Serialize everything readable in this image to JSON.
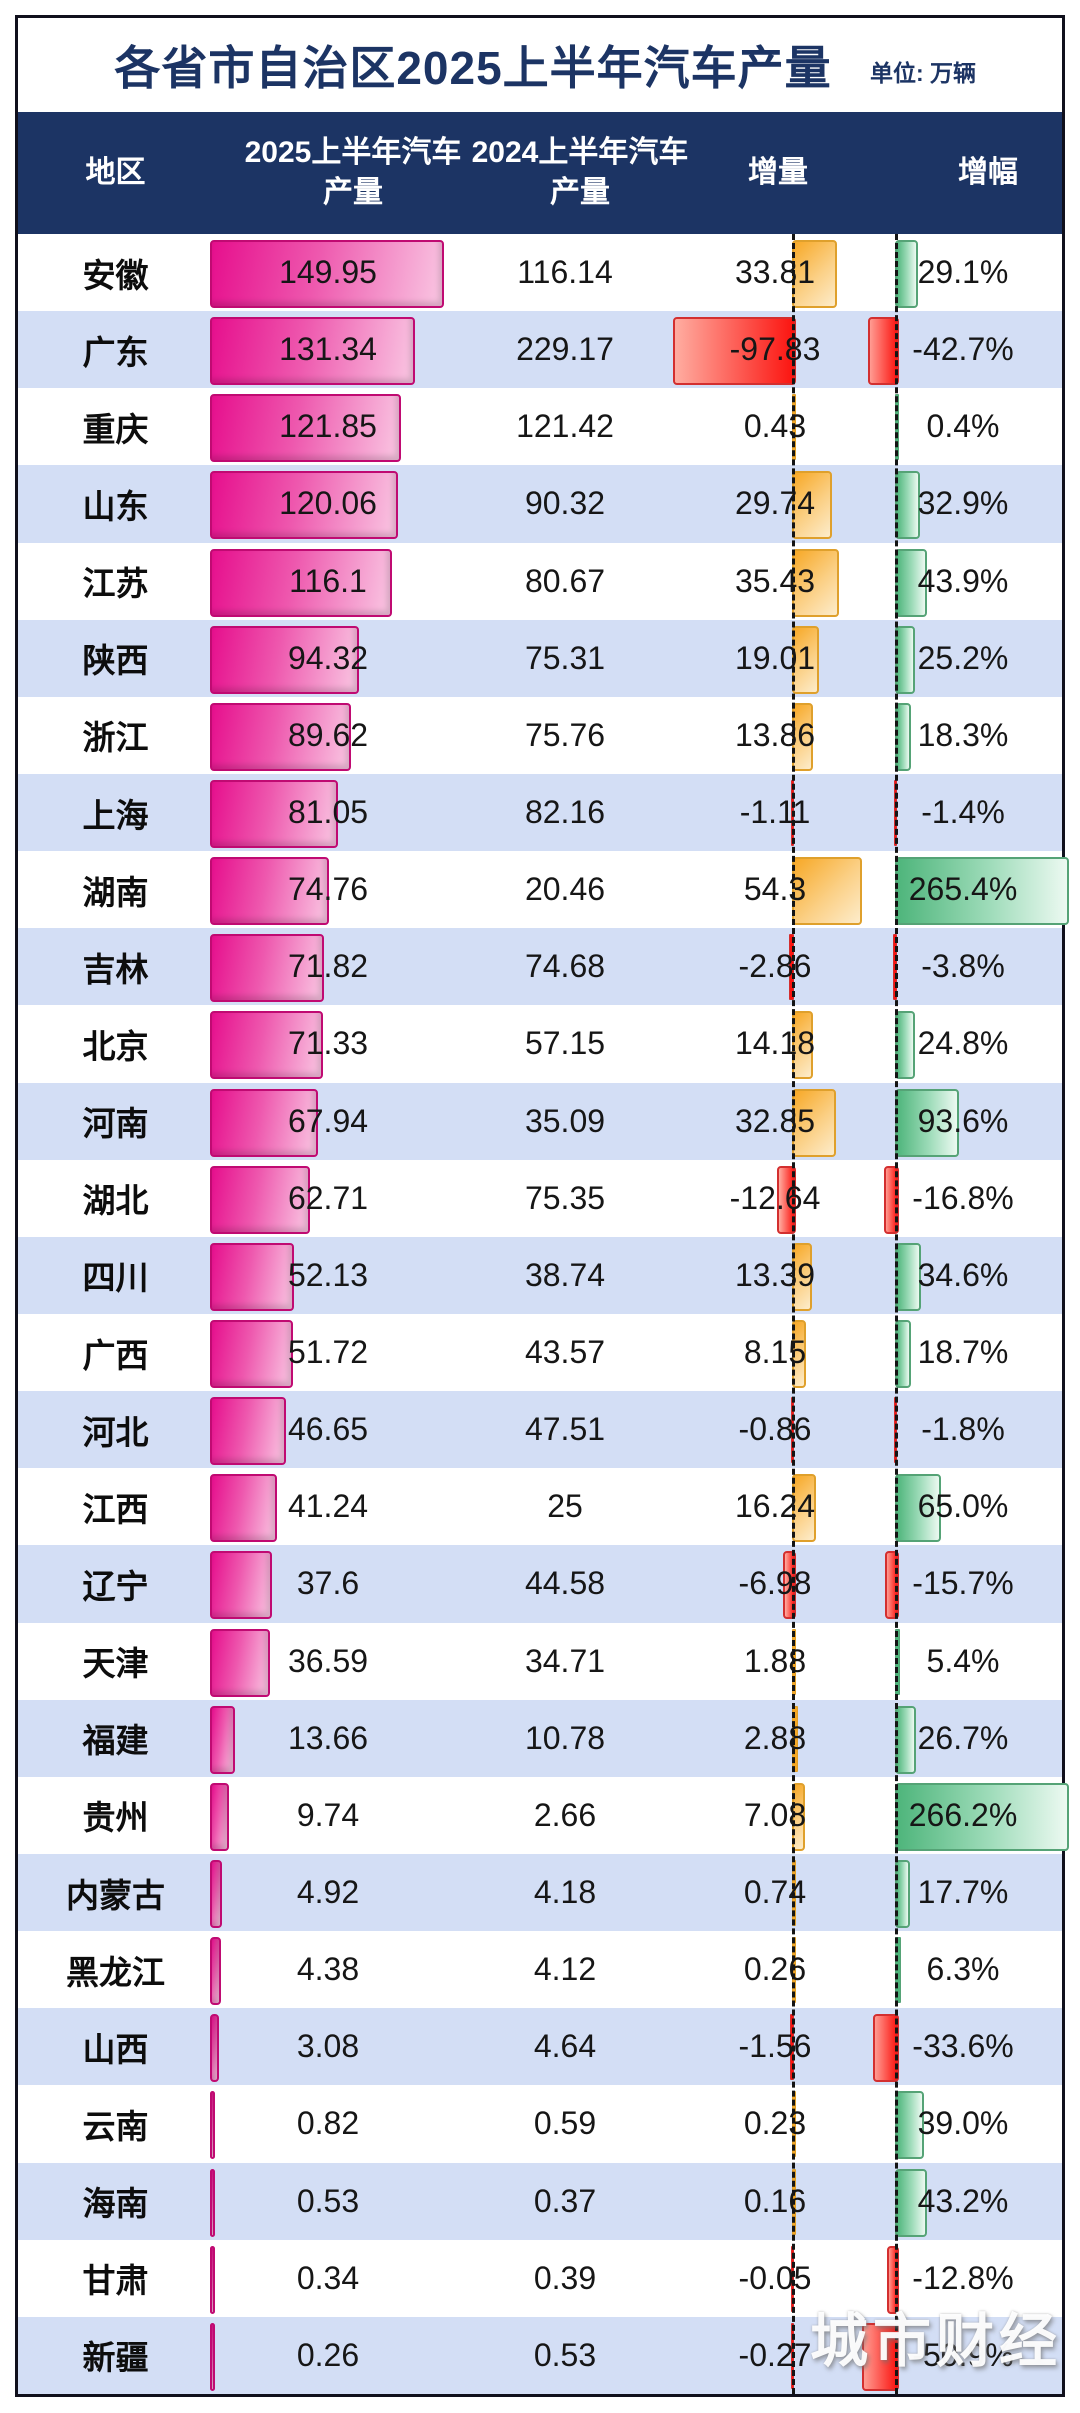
{
  "page": {
    "title": "各省市自治区2025上半年汽车产量",
    "unit_label": "单位: 万辆",
    "watermark": "城市财经"
  },
  "table_headers": {
    "region": "地区",
    "y2025": "2025上半年汽车\n产量",
    "y2024": "2024上半年汽车\n产量",
    "delta": "增量",
    "growth": "增幅"
  },
  "colors": {
    "navy": "#1c3464",
    "row_alt": "#d3def5",
    "bar_2025_magenta": "#e60f8d",
    "bar_delta_positive": "#f7a826",
    "bar_negative_red": "#fb1410",
    "bar_growth_positive": "#4eb57b"
  },
  "chart_data": {
    "type": "bar",
    "title": "各省市自治区2025上半年汽车产量",
    "unit": "万辆",
    "legend_position": "none",
    "grid": false,
    "categories": [
      "安徽",
      "广东",
      "重庆",
      "山东",
      "江苏",
      "陕西",
      "浙江",
      "上海",
      "湖南",
      "吉林",
      "北京",
      "河南",
      "湖北",
      "四川",
      "广西",
      "河北",
      "江西",
      "辽宁",
      "天津",
      "福建",
      "贵州",
      "内蒙古",
      "黑龙江",
      "山西",
      "云南",
      "海南",
      "甘肃",
      "新疆"
    ],
    "series": [
      {
        "name": "2025上半年汽车产量",
        "values": [
          "149.95",
          "131.34",
          "121.85",
          "120.06",
          "116.1",
          "94.32",
          "89.62",
          "81.05",
          "74.76",
          "71.82",
          "71.33",
          "67.94",
          "62.71",
          "52.13",
          "51.72",
          "46.65",
          "41.24",
          "37.6",
          "36.59",
          "13.66",
          "9.74",
          "4.92",
          "4.38",
          "3.08",
          "0.82",
          "0.53",
          "0.34",
          "0.26"
        ]
      },
      {
        "name": "2024上半年汽车产量",
        "values": [
          "116.14",
          "229.17",
          "121.42",
          "90.32",
          "80.67",
          "75.31",
          "75.76",
          "82.16",
          "20.46",
          "74.68",
          "57.15",
          "35.09",
          "75.35",
          "38.74",
          "43.57",
          "47.51",
          "25",
          "44.58",
          "34.71",
          "10.78",
          "2.66",
          "4.18",
          "4.12",
          "4.64",
          "0.59",
          "0.37",
          "0.39",
          "0.53"
        ]
      },
      {
        "name": "增量",
        "values": [
          "33.81",
          "-97.83",
          "0.43",
          "29.74",
          "35.43",
          "19.01",
          "13.86",
          "-1.11",
          "54.3",
          "-2.86",
          "14.18",
          "32.85",
          "-12.64",
          "13.39",
          "8.15",
          "-0.86",
          "16.24",
          "-6.98",
          "1.88",
          "2.88",
          "7.08",
          "0.74",
          "0.26",
          "-1.56",
          "0.23",
          "0.16",
          "-0.05",
          "-0.27"
        ]
      },
      {
        "name": "增幅",
        "values": [
          "29.1%",
          "-42.7%",
          "0.4%",
          "32.9%",
          "43.9%",
          "25.2%",
          "18.3%",
          "-1.4%",
          "265.4%",
          "-3.8%",
          "24.8%",
          "93.6%",
          "-16.8%",
          "34.6%",
          "18.7%",
          "-1.8%",
          "65.0%",
          "-15.7%",
          "5.4%",
          "26.7%",
          "266.2%",
          "17.7%",
          "6.3%",
          "-33.6%",
          "39.0%",
          "43.2%",
          "-12.8%",
          "-50.9%"
        ]
      }
    ]
  }
}
